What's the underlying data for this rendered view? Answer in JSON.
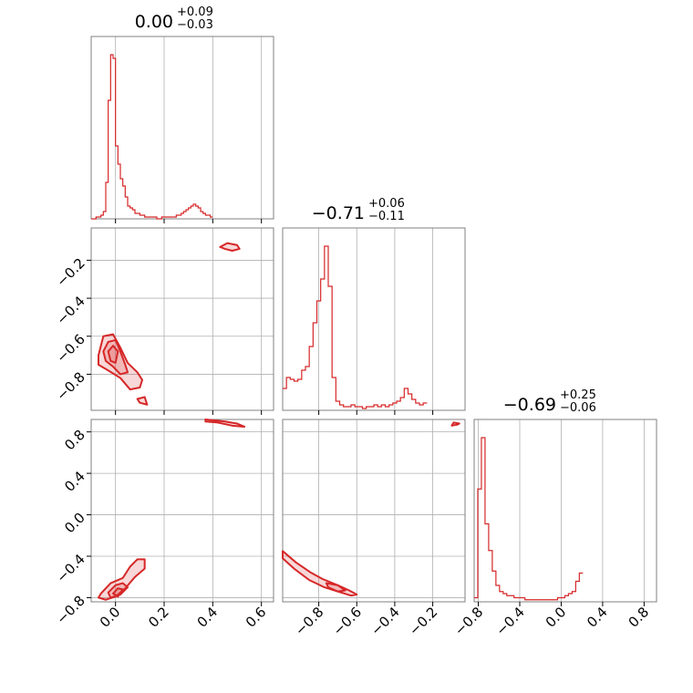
{
  "chart_data": {
    "type": "corner",
    "line_color": "#d62728",
    "grid": true,
    "titles": [
      {
        "panel": 0,
        "main": "0.00",
        "plus": "+0.09",
        "minus": "−0.03"
      },
      {
        "panel": 1,
        "main": "−0.71",
        "plus": "+0.06",
        "minus": "−0.11"
      },
      {
        "panel": 2,
        "main": "−0.69",
        "plus": "+0.25",
        "minus": "−0.06"
      }
    ],
    "parameters": [
      {
        "range": [
          -0.1,
          0.65
        ],
        "ticks": [
          0.0,
          0.2,
          0.4,
          0.6
        ],
        "tick_labels": [
          "0.0",
          "0.2",
          "0.4",
          "0.6"
        ]
      },
      {
        "range": [
          -0.99,
          -0.03
        ],
        "ticks": [
          -0.8,
          -0.6,
          -0.4,
          -0.2
        ],
        "tick_labels": [
          "−0.8",
          "−0.6",
          "−0.4",
          "−0.2"
        ]
      },
      {
        "range": [
          -0.84,
          0.92
        ],
        "ticks": [
          -0.8,
          -0.4,
          0.0,
          0.4,
          0.8
        ],
        "tick_labels": [
          "−0.8",
          "−0.4",
          "0.0",
          "0.4",
          "0.8"
        ]
      }
    ],
    "histograms": [
      {
        "param": 0,
        "bin_width": 0.01,
        "bin_start": -0.1,
        "counts": [
          0,
          0,
          1,
          1,
          2,
          4,
          20,
          65,
          90,
          88,
          40,
          30,
          22,
          18,
          12,
          7,
          6,
          5,
          3,
          3,
          2,
          2,
          1,
          1,
          1,
          1,
          1,
          0,
          0,
          1,
          1,
          1,
          1,
          1,
          1,
          2,
          2,
          3,
          4,
          5,
          6,
          7,
          8,
          7,
          6,
          4,
          3,
          2,
          2,
          1
        ]
      },
      {
        "param": 1,
        "bin_width": 0.02,
        "bin_start": -0.99,
        "counts": [
          12,
          18,
          17,
          16,
          17,
          22,
          24,
          35,
          48,
          60,
          72,
          90,
          68,
          18,
          5,
          3,
          2,
          2,
          3,
          2,
          2,
          1,
          2,
          2,
          3,
          2,
          3,
          2,
          3,
          4,
          5,
          7,
          12,
          9,
          6,
          4,
          3,
          4
        ]
      },
      {
        "param": 2,
        "bin_width": 0.035,
        "bin_start": -0.84,
        "counts": [
          2,
          55,
          80,
          38,
          25,
          15,
          8,
          5,
          4,
          3,
          3,
          2,
          2,
          2,
          1,
          1,
          1,
          1,
          1,
          1,
          1,
          1,
          1,
          2,
          2,
          3,
          4,
          5,
          10,
          14
        ]
      }
    ],
    "contours_2d": [
      {
        "x_param": 0,
        "y_param": 1,
        "levels": [
          [
            [
              -0.07,
              -0.7
            ],
            [
              -0.05,
              -0.6
            ],
            [
              -0.01,
              -0.59
            ],
            [
              0.02,
              -0.66
            ],
            [
              0.05,
              -0.74
            ],
            [
              0.09,
              -0.79
            ],
            [
              0.11,
              -0.83
            ],
            [
              0.1,
              -0.87
            ],
            [
              0.06,
              -0.88
            ],
            [
              0.02,
              -0.82
            ],
            [
              -0.03,
              -0.78
            ],
            [
              -0.07,
              -0.75
            ]
          ],
          [
            [
              -0.05,
              -0.68
            ],
            [
              -0.03,
              -0.63
            ],
            [
              0.0,
              -0.62
            ],
            [
              0.02,
              -0.68
            ],
            [
              0.04,
              -0.75
            ],
            [
              0.05,
              -0.79
            ],
            [
              0.02,
              -0.8
            ],
            [
              -0.01,
              -0.76
            ],
            [
              -0.04,
              -0.73
            ]
          ],
          [
            [
              -0.03,
              -0.68
            ],
            [
              -0.01,
              -0.65
            ],
            [
              0.01,
              -0.68
            ],
            [
              0.0,
              -0.74
            ],
            [
              -0.02,
              -0.73
            ]
          ],
          [
            [
              0.43,
              -0.13
            ],
            [
              0.46,
              -0.11
            ],
            [
              0.5,
              -0.12
            ],
            [
              0.51,
              -0.14
            ],
            [
              0.48,
              -0.15
            ],
            [
              0.45,
              -0.14
            ]
          ],
          [
            [
              0.09,
              -0.93
            ],
            [
              0.12,
              -0.92
            ],
            [
              0.13,
              -0.96
            ],
            [
              0.1,
              -0.95
            ]
          ]
        ]
      },
      {
        "x_param": 0,
        "y_param": 2,
        "levels": [
          [
            [
              -0.06,
              -0.76
            ],
            [
              -0.02,
              -0.66
            ],
            [
              0.03,
              -0.61
            ],
            [
              0.06,
              -0.5
            ],
            [
              0.09,
              -0.43
            ],
            [
              0.12,
              -0.43
            ],
            [
              0.12,
              -0.52
            ],
            [
              0.08,
              -0.6
            ],
            [
              0.04,
              -0.71
            ],
            [
              0.0,
              -0.79
            ],
            [
              -0.04,
              -0.82
            ],
            [
              -0.07,
              -0.8
            ]
          ],
          [
            [
              -0.03,
              -0.75
            ],
            [
              0.0,
              -0.68
            ],
            [
              0.03,
              -0.66
            ],
            [
              0.05,
              -0.7
            ],
            [
              0.02,
              -0.77
            ],
            [
              -0.02,
              -0.8
            ]
          ],
          [
            [
              -0.01,
              -0.76
            ],
            [
              0.01,
              -0.71
            ],
            [
              0.03,
              -0.72
            ],
            [
              0.01,
              -0.79
            ]
          ],
          [
            [
              0.37,
              0.92
            ],
            [
              0.45,
              0.9
            ],
            [
              0.5,
              0.88
            ],
            [
              0.53,
              0.85
            ],
            [
              0.48,
              0.86
            ],
            [
              0.42,
              0.89
            ],
            [
              0.37,
              0.9
            ]
          ]
        ]
      },
      {
        "x_param": 1,
        "y_param": 2,
        "levels": [
          [
            [
              -0.99,
              -0.35
            ],
            [
              -0.92,
              -0.46
            ],
            [
              -0.84,
              -0.56
            ],
            [
              -0.78,
              -0.62
            ],
            [
              -0.7,
              -0.68
            ],
            [
              -0.64,
              -0.73
            ],
            [
              -0.6,
              -0.77
            ],
            [
              -0.63,
              -0.78
            ],
            [
              -0.7,
              -0.74
            ],
            [
              -0.77,
              -0.7
            ],
            [
              -0.85,
              -0.63
            ],
            [
              -0.93,
              -0.52
            ],
            [
              -0.99,
              -0.42
            ]
          ],
          [
            [
              -0.76,
              -0.66
            ],
            [
              -0.7,
              -0.68
            ],
            [
              -0.66,
              -0.73
            ],
            [
              -0.7,
              -0.74
            ],
            [
              -0.75,
              -0.7
            ]
          ],
          [
            [
              -0.1,
              0.86
            ],
            [
              -0.07,
              0.87
            ],
            [
              -0.06,
              0.88
            ],
            [
              -0.09,
              0.89
            ]
          ]
        ]
      }
    ]
  }
}
